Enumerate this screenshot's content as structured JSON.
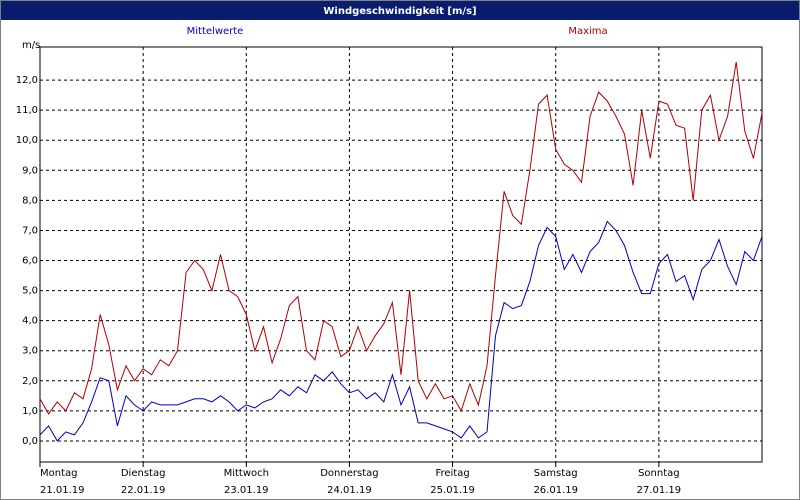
{
  "chart_data": {
    "type": "line",
    "title": "Windgeschwindigkeit [m/s]",
    "y_label": "m/s",
    "x": [
      0,
      2,
      4,
      6,
      8,
      10,
      12,
      14,
      16,
      18,
      20,
      22,
      24,
      26,
      28,
      30,
      32,
      34,
      36,
      38,
      40,
      42,
      44,
      46,
      48,
      50,
      52,
      54,
      56,
      58,
      60,
      62,
      64,
      66,
      68,
      70,
      72,
      74,
      76,
      78,
      80,
      82,
      84,
      86,
      88,
      90,
      92,
      94,
      96,
      98,
      100,
      102,
      104,
      106,
      108,
      110,
      112,
      114,
      116,
      118,
      120,
      122,
      124,
      126,
      128,
      130,
      132,
      134,
      136,
      138,
      140,
      142,
      144,
      146,
      148,
      150,
      152,
      154,
      156,
      158,
      160,
      162,
      164,
      166,
      168
    ],
    "series": [
      {
        "name": "Mittelwerte",
        "color": "#0000c0",
        "values": [
          0.2,
          0.5,
          0.0,
          0.3,
          0.2,
          0.6,
          1.3,
          2.1,
          2.0,
          0.5,
          1.5,
          1.2,
          1.0,
          1.3,
          1.2,
          1.2,
          1.2,
          1.3,
          1.4,
          1.4,
          1.3,
          1.5,
          1.3,
          1.0,
          1.2,
          1.1,
          1.3,
          1.4,
          1.7,
          1.5,
          1.8,
          1.6,
          2.2,
          2.0,
          2.3,
          1.9,
          1.6,
          1.7,
          1.4,
          1.6,
          1.3,
          2.2,
          1.2,
          1.8,
          0.6,
          0.6,
          0.5,
          0.4,
          0.3,
          0.1,
          0.5,
          0.1,
          0.3,
          3.5,
          4.6,
          4.4,
          4.5,
          5.3,
          6.5,
          7.1,
          6.8,
          5.7,
          6.2,
          5.6,
          6.3,
          6.6,
          7.3,
          7.0,
          6.5,
          5.6,
          4.9,
          4.9,
          5.9,
          6.2,
          5.3,
          5.5,
          4.7,
          5.7,
          6.0,
          6.7,
          5.8,
          5.2,
          6.3,
          6.0,
          6.8
        ]
      },
      {
        "name": "Maxima",
        "color": "#b00000",
        "values": [
          1.4,
          0.9,
          1.3,
          1.0,
          1.6,
          1.4,
          2.4,
          4.2,
          3.2,
          1.7,
          2.5,
          2.0,
          2.4,
          2.2,
          2.7,
          2.5,
          3.0,
          5.6,
          6.0,
          5.7,
          5.0,
          6.2,
          5.0,
          4.8,
          4.2,
          3.0,
          3.8,
          2.6,
          3.4,
          4.5,
          4.8,
          3.0,
          2.7,
          4.0,
          3.8,
          2.8,
          3.0,
          3.8,
          3.0,
          3.5,
          3.9,
          4.6,
          2.2,
          5.0,
          2.0,
          1.4,
          1.9,
          1.4,
          1.5,
          1.0,
          1.9,
          1.2,
          2.5,
          5.5,
          8.3,
          7.5,
          7.2,
          9.0,
          11.2,
          11.5,
          9.7,
          9.2,
          9.0,
          8.6,
          10.8,
          11.6,
          11.3,
          10.8,
          10.2,
          8.5,
          11.0,
          9.4,
          11.3,
          11.2,
          10.5,
          10.4,
          8.0,
          11.0,
          11.5,
          10.0,
          10.8,
          12.6,
          10.3,
          9.4,
          10.9
        ]
      }
    ],
    "xlim": [
      0,
      168
    ],
    "xticks": [
      {
        "value": 0,
        "label": "Montag",
        "date": "21.01.19"
      },
      {
        "value": 24,
        "label": "Dienstag",
        "date": "22.01.19"
      },
      {
        "value": 48,
        "label": "Mittwoch",
        "date": "23.01.19"
      },
      {
        "value": 72,
        "label": "Donnerstag",
        "date": "24.01.19"
      },
      {
        "value": 96,
        "label": "Freitag",
        "date": "25.01.19"
      },
      {
        "value": 120,
        "label": "Samstag",
        "date": "26.01.19"
      },
      {
        "value": 144,
        "label": "Sonntag",
        "date": "27.01.19"
      }
    ],
    "ylim": [
      -0.7,
      13.1
    ],
    "yticks": [
      {
        "value": 0,
        "label": "0,0"
      },
      {
        "value": 1,
        "label": "1,0"
      },
      {
        "value": 2,
        "label": "2,0"
      },
      {
        "value": 3,
        "label": "3,0"
      },
      {
        "value": 4,
        "label": "4,0"
      },
      {
        "value": 5,
        "label": "5,0"
      },
      {
        "value": 6,
        "label": "6,0"
      },
      {
        "value": 7,
        "label": "7,0"
      },
      {
        "value": 8,
        "label": "8,0"
      },
      {
        "value": 9,
        "label": "9,0"
      },
      {
        "value": 10,
        "label": "10,0"
      },
      {
        "value": 11,
        "label": "11,0"
      },
      {
        "value": 12,
        "label": "12,0"
      }
    ],
    "grid": true
  }
}
